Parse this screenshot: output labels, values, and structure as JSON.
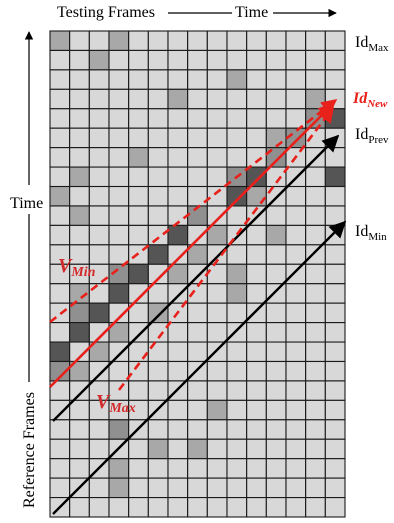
{
  "labels": {
    "top_axis": "Testing Frames",
    "top_time": "Time",
    "left_time": "Time",
    "left_axis": "Reference Frames"
  },
  "line_labels": {
    "id_max": {
      "base": "Id",
      "sub": "Max"
    },
    "id_new": {
      "base": "Id",
      "sub": "New"
    },
    "id_prev": {
      "base": "Id",
      "sub": "Prev"
    },
    "id_min": {
      "base": "Id",
      "sub": "Min"
    },
    "v_min": {
      "base": "V",
      "sub": "Min"
    },
    "v_max": {
      "base": "V",
      "sub": "Max"
    }
  },
  "grid": {
    "cols": 15,
    "rows": 25,
    "light_gray": [
      [
        0,
        0
      ],
      [
        0,
        3
      ],
      [
        1,
        2
      ],
      [
        2,
        9
      ],
      [
        3,
        6
      ],
      [
        3,
        13
      ],
      [
        5,
        11
      ],
      [
        6,
        4
      ],
      [
        7,
        1
      ],
      [
        8,
        0
      ],
      [
        8,
        10
      ],
      [
        9,
        1
      ],
      [
        10,
        8
      ],
      [
        10,
        11
      ],
      [
        11,
        5
      ],
      [
        11,
        7
      ],
      [
        12,
        6
      ],
      [
        12,
        9
      ],
      [
        13,
        1
      ],
      [
        13,
        9
      ],
      [
        14,
        5
      ],
      [
        15,
        3
      ],
      [
        16,
        2
      ],
      [
        17,
        1
      ],
      [
        19,
        8
      ],
      [
        20,
        3
      ],
      [
        21,
        5
      ],
      [
        21,
        7
      ],
      [
        22,
        3
      ],
      [
        23,
        3
      ]
    ],
    "dark_gray": [
      [
        4,
        14
      ],
      [
        7,
        14
      ],
      [
        7,
        10
      ],
      [
        8,
        9
      ],
      [
        10,
        6
      ],
      [
        11,
        5
      ],
      [
        12,
        4
      ],
      [
        13,
        3
      ],
      [
        14,
        2
      ],
      [
        15,
        1
      ],
      [
        16,
        0
      ]
    ],
    "mid_gray": [
      [
        4,
        13
      ],
      [
        5,
        12
      ],
      [
        6,
        11
      ],
      [
        7,
        9
      ],
      [
        9,
        7
      ],
      [
        12,
        3
      ],
      [
        14,
        1
      ],
      [
        17,
        0
      ],
      [
        20,
        3
      ]
    ]
  },
  "colors": {
    "background": "#ffffff",
    "cell_fill": "#d8d8d8",
    "cell_stroke": "#1a1a1a",
    "light_gray": "#a8a8a8",
    "mid_gray": "#909090",
    "dark_gray": "#555555",
    "red": "#e8211b",
    "black": "#000000"
  }
}
